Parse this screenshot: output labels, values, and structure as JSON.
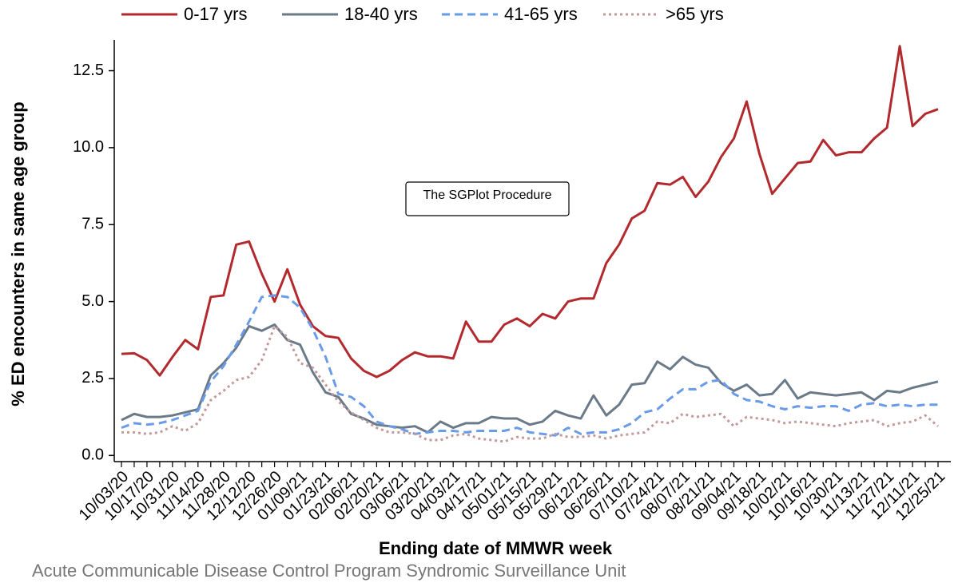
{
  "chart_data": {
    "type": "line",
    "ylabel": "% ED encounters in same age group",
    "xlabel": "Ending date of MMWR week",
    "annotation": "The SGPlot Procedure",
    "source": "Acute Communicable Disease Control Program Syndromic Surveillance Unit",
    "categories": [
      "10/03/20",
      null,
      "10/17/20",
      null,
      "10/31/20",
      null,
      "11/14/20",
      null,
      "11/28/20",
      null,
      "12/12/20",
      null,
      "12/26/20",
      null,
      "01/09/21",
      null,
      "01/23/21",
      null,
      "02/06/21",
      null,
      "02/20/21",
      null,
      "03/06/21",
      null,
      "03/20/21",
      null,
      "04/03/21",
      null,
      "04/17/21",
      null,
      "05/01/21",
      null,
      "05/15/21",
      null,
      "05/29/21",
      null,
      "06/12/21",
      null,
      "06/26/21",
      null,
      "07/10/21",
      null,
      "07/24/21",
      null,
      "08/07/21",
      null,
      "08/21/21",
      null,
      "09/04/21",
      null,
      "09/18/21",
      null,
      "10/02/21",
      null,
      "10/16/21",
      null,
      "10/30/21",
      null,
      "11/13/21",
      null,
      "11/27/21",
      null,
      "12/11/21",
      null,
      "12/25/21"
    ],
    "series": [
      {
        "name": "0-17 yrs",
        "color": "#b22a2e",
        "style": "solid",
        "values": [
          3.3,
          3.32,
          3.1,
          2.6,
          3.2,
          3.75,
          3.45,
          5.15,
          5.2,
          6.85,
          6.95,
          5.9,
          5.0,
          6.05,
          4.9,
          4.2,
          3.88,
          3.82,
          3.15,
          2.75,
          2.55,
          2.75,
          3.1,
          3.35,
          3.22,
          3.22,
          3.15,
          4.35,
          3.7,
          3.7,
          4.25,
          4.45,
          4.2,
          4.6,
          4.45,
          5.0,
          5.1,
          5.1,
          6.25,
          6.85,
          7.7,
          7.95,
          8.85,
          8.8,
          9.05,
          8.4,
          8.9,
          9.7,
          10.3,
          11.5,
          9.8,
          8.5,
          9.0,
          9.5,
          9.55,
          10.25,
          9.75,
          9.85,
          9.85,
          10.3,
          10.65,
          13.3,
          10.7,
          11.1,
          11.25
        ]
      },
      {
        "name": "18-40 yrs",
        "color": "#6b7a89",
        "style": "solid",
        "values": [
          1.15,
          1.35,
          1.25,
          1.25,
          1.3,
          1.4,
          1.5,
          2.6,
          3.0,
          3.5,
          4.2,
          4.05,
          4.25,
          3.75,
          3.6,
          2.7,
          2.05,
          1.9,
          1.35,
          1.2,
          1.0,
          0.95,
          0.9,
          0.95,
          0.75,
          1.1,
          0.9,
          1.05,
          1.05,
          1.25,
          1.2,
          1.2,
          1.0,
          1.1,
          1.45,
          1.3,
          1.2,
          1.95,
          1.3,
          1.65,
          2.3,
          2.35,
          3.05,
          2.8,
          3.2,
          2.95,
          2.85,
          2.35,
          2.1,
          2.3,
          1.95,
          2.0,
          2.45,
          1.85,
          2.05,
          2.0,
          1.95,
          2.0,
          2.05,
          1.8,
          2.1,
          2.05,
          2.2,
          2.3,
          2.4
        ]
      },
      {
        "name": "41-65 yrs",
        "color": "#6a9be8",
        "style": "dashed",
        "values": [
          0.9,
          1.05,
          1.0,
          1.05,
          1.15,
          1.3,
          1.45,
          2.4,
          2.9,
          3.6,
          4.35,
          5.15,
          5.2,
          5.15,
          4.8,
          4.1,
          3.2,
          2.0,
          1.9,
          1.6,
          1.1,
          0.95,
          0.85,
          0.7,
          0.75,
          0.8,
          0.8,
          0.75,
          0.8,
          0.8,
          0.8,
          0.9,
          0.75,
          0.7,
          0.65,
          0.9,
          0.7,
          0.75,
          0.75,
          0.85,
          1.05,
          1.4,
          1.5,
          1.85,
          2.15,
          2.15,
          2.4,
          2.45,
          2.0,
          1.8,
          1.75,
          1.6,
          1.5,
          1.6,
          1.55,
          1.6,
          1.6,
          1.45,
          1.65,
          1.7,
          1.6,
          1.65,
          1.6,
          1.65,
          1.65
        ]
      },
      {
        "name": ">65 yrs",
        "color": "#c39a9a",
        "style": "dotted",
        "values": [
          0.75,
          0.75,
          0.7,
          0.75,
          0.95,
          0.8,
          1.05,
          1.8,
          2.1,
          2.45,
          2.55,
          3.1,
          4.2,
          3.85,
          3.0,
          2.85,
          2.3,
          1.75,
          1.4,
          1.15,
          0.9,
          0.75,
          0.75,
          0.7,
          0.5,
          0.5,
          0.65,
          0.7,
          0.55,
          0.5,
          0.45,
          0.6,
          0.55,
          0.55,
          0.7,
          0.6,
          0.6,
          0.65,
          0.55,
          0.65,
          0.7,
          0.75,
          1.1,
          1.05,
          1.35,
          1.25,
          1.3,
          1.35,
          0.95,
          1.25,
          1.2,
          1.15,
          1.05,
          1.1,
          1.05,
          1.0,
          0.95,
          1.05,
          1.1,
          1.15,
          0.95,
          1.05,
          1.1,
          1.3,
          0.95
        ]
      }
    ],
    "ylim": [
      -0.2,
      13.5
    ],
    "yticks": [
      {
        "value": 0,
        "label": "0.0"
      },
      2.5,
      {
        "value": 5,
        "label": "5.0"
      },
      7.5,
      {
        "value": 10,
        "label": "10.0"
      },
      12.5
    ],
    "grid": false
  }
}
